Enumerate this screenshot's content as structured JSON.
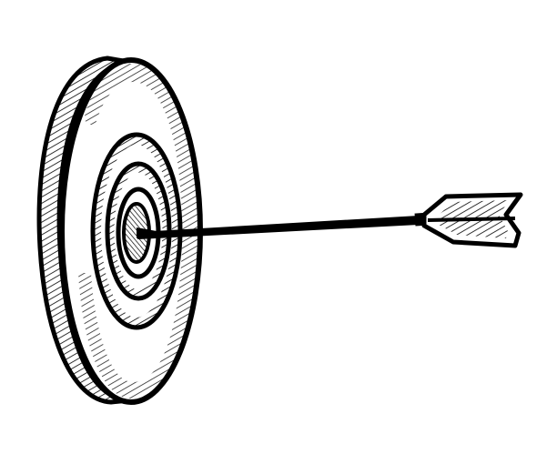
{
  "illustration": {
    "subject_icon": "target-arrow-icon",
    "parts": [
      "target-board-icon",
      "bullseye-icon",
      "arrow-icon"
    ],
    "colors": {
      "background": "#ffffff",
      "ink": "#000000"
    }
  }
}
